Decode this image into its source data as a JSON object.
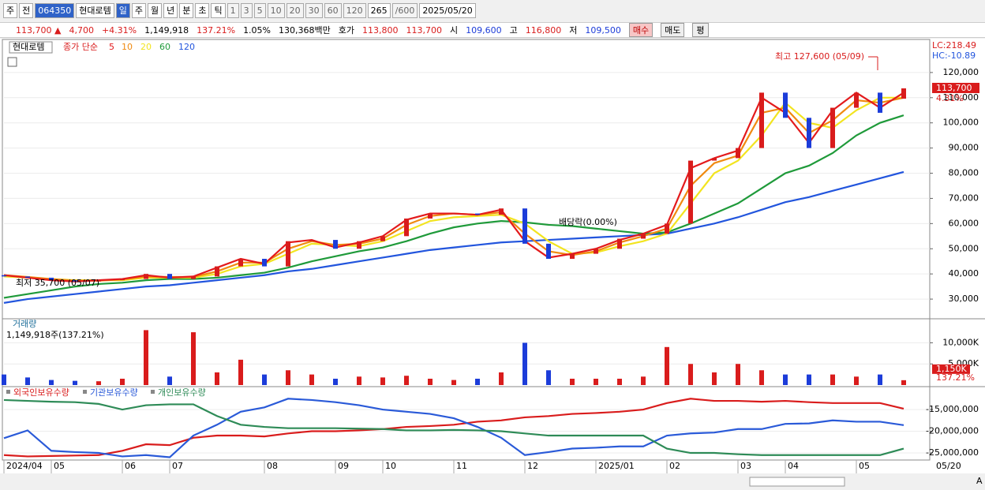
{
  "toolbar": {
    "tabs": [
      "주",
      "전"
    ],
    "code": "064350",
    "name": "현대로템",
    "periods": [
      "일",
      "주",
      "월",
      "년",
      "분",
      "초",
      "틱"
    ],
    "intervals": [
      "1",
      "3",
      "5",
      "10",
      "20",
      "30",
      "60",
      "120"
    ],
    "count": "265",
    "total": "/600",
    "date": "2025/05/20"
  },
  "info": [
    {
      "text": "113,700 ▲",
      "color": "#d91c1c"
    },
    {
      "text": "4,700",
      "color": "#d91c1c"
    },
    {
      "text": "+4.31%",
      "color": "#d91c1c"
    },
    {
      "text": "1,149,918",
      "color": "#000"
    },
    {
      "text": "137.21%",
      "color": "#d91c1c"
    },
    {
      "text": "1.05%",
      "color": "#000"
    },
    {
      "text": "130,368백만",
      "color": "#000"
    },
    {
      "text": "호가",
      "color": "#000"
    },
    {
      "text": "113,800",
      "color": "#d91c1c"
    },
    {
      "text": "113,700",
      "color": "#d91c1c"
    },
    {
      "text": "시",
      "color": "#000"
    },
    {
      "text": "109,600",
      "color": "#1c3cd9"
    },
    {
      "text": "고",
      "color": "#000"
    },
    {
      "text": "116,800",
      "color": "#d91c1c"
    },
    {
      "text": "저",
      "color": "#000"
    },
    {
      "text": "109,500",
      "color": "#1c3cd9"
    }
  ],
  "buttons": [
    "매수",
    "매도",
    "평"
  ],
  "chart_data": [
    {
      "type": "candlestick",
      "title": "현대로템",
      "legend_label": "종가 단순",
      "categories": [
        "2024/04",
        null,
        "05",
        null,
        null,
        "06",
        null,
        "07",
        null,
        null,
        null,
        "08",
        null,
        null,
        "09",
        null,
        "10",
        null,
        null,
        "11",
        null,
        null,
        "12",
        null,
        null,
        "2025/01",
        null,
        null,
        "02",
        null,
        null,
        "03",
        null,
        "04",
        null,
        null,
        "05",
        null,
        null
      ],
      "last_date": "05/20",
      "open": [
        39500,
        39000,
        38500,
        37500,
        37000,
        37500,
        38000,
        40000,
        38000,
        39000,
        43000,
        46000,
        43000,
        53000,
        53500,
        50000,
        53000,
        55000,
        62000,
        64000,
        64000,
        63500,
        66000,
        52000,
        46000,
        48000,
        50000,
        54000,
        56000,
        60000,
        85000,
        86000,
        90000,
        112000,
        102000,
        90000,
        106000,
        112000,
        109600
      ],
      "close": [
        39000,
        38500,
        37500,
        37000,
        37500,
        38000,
        40000,
        38000,
        39000,
        43000,
        46000,
        43000,
        53000,
        53500,
        50000,
        53000,
        55000,
        62000,
        64000,
        64000,
        63500,
        66000,
        52000,
        46000,
        48000,
        50000,
        54000,
        56000,
        60000,
        85000,
        86000,
        90000,
        112000,
        102000,
        90000,
        106000,
        112000,
        104000,
        113700
      ],
      "up_color": "#d91c1c",
      "down_color": "#1c3cd9",
      "series": [
        {
          "name": "5",
          "color": "#e31a1c",
          "values": [
            39500,
            38500,
            37500,
            37000,
            37500,
            38000,
            39500,
            38500,
            39000,
            42500,
            46000,
            44000,
            52500,
            53500,
            50500,
            52500,
            55000,
            61500,
            64000,
            64000,
            63500,
            65500,
            53000,
            46500,
            48000,
            50000,
            53500,
            56000,
            59500,
            82000,
            86000,
            89000,
            110000,
            104000,
            92000,
            105000,
            112000,
            106000,
            112000
          ]
        },
        {
          "name": "10",
          "color": "#f08a10",
          "values": [
            39500,
            38800,
            38000,
            37300,
            37300,
            37800,
            39000,
            38800,
            38800,
            41000,
            44500,
            44500,
            50000,
            53000,
            51500,
            52000,
            54000,
            59500,
            63000,
            64000,
            63500,
            64500,
            56000,
            49000,
            47500,
            49000,
            52500,
            55000,
            58000,
            75000,
            84000,
            87000,
            104000,
            106000,
            96000,
            101000,
            109000,
            108000,
            110000
          ]
        },
        {
          "name": "20",
          "color": "#f2e420",
          "values": [
            39000,
            38500,
            38000,
            37500,
            37500,
            37500,
            38500,
            38500,
            38500,
            40000,
            43000,
            44000,
            48000,
            52000,
            51500,
            51000,
            53000,
            57000,
            61000,
            62500,
            63000,
            63500,
            60000,
            53000,
            48000,
            48500,
            51000,
            53000,
            56000,
            68000,
            80000,
            85000,
            95000,
            108000,
            100000,
            98000,
            105000,
            110000,
            110000
          ]
        },
        {
          "name": "60",
          "color": "#1f9a3a",
          "values": [
            30500,
            32000,
            33500,
            35000,
            36000,
            36500,
            37500,
            38000,
            38000,
            38500,
            39500,
            40500,
            42500,
            45000,
            47000,
            49000,
            50500,
            53000,
            56000,
            58500,
            60000,
            61000,
            60500,
            59500,
            59000,
            58000,
            57000,
            56000,
            56500,
            60000,
            64000,
            68000,
            74000,
            80000,
            83000,
            88000,
            95000,
            100000,
            103000
          ]
        },
        {
          "name": "120",
          "color": "#2255dd",
          "values": [
            28500,
            30000,
            31000,
            32000,
            33000,
            34000,
            35000,
            35500,
            36500,
            37500,
            38500,
            39500,
            41000,
            42000,
            43500,
            45000,
            46500,
            48000,
            49500,
            50500,
            51500,
            52500,
            53000,
            53500,
            54000,
            54500,
            55000,
            55500,
            56000,
            58000,
            60000,
            62500,
            65500,
            68500,
            70500,
            73000,
            75500,
            78000,
            80500
          ]
        }
      ],
      "ylim": [
        22500,
        132500
      ],
      "yticks": [
        {
          "value": 30000,
          "label": "30,000"
        },
        {
          "value": 40000,
          "label": "40,000"
        },
        {
          "value": 50000,
          "label": "50,000"
        },
        {
          "value": 60000,
          "label": "60,000"
        },
        {
          "value": 70000,
          "label": "70,000"
        },
        {
          "value": 80000,
          "label": "80,000"
        },
        {
          "value": 90000,
          "label": "90,000"
        },
        {
          "value": 100000,
          "label": "100,000"
        },
        {
          "value": 110000,
          "label": "110,000"
        },
        {
          "value": 120000,
          "label": "120,000"
        }
      ],
      "grid": true,
      "annotations": [
        {
          "text": "최고 127,600 (05/09)",
          "color": "#d91c1c"
        },
        {
          "text": "최저 35,700 (05/07)",
          "color": "#000"
        },
        {
          "text": "배당락(0.00%)",
          "color": "#000"
        }
      ],
      "lc_label": "LC:218.49",
      "hc_label": "HC:-10.89",
      "close_label": "113,700",
      "change_label": "4.31%"
    },
    {
      "type": "bar",
      "title": "거래량",
      "subtitle": "1,149,918주(137.21%)",
      "values": [
        2500,
        1800,
        1200,
        1000,
        900,
        1500,
        13000,
        2000,
        12500,
        3000,
        6000,
        2500,
        3500,
        2500,
        1500,
        2000,
        1800,
        2200,
        1500,
        1200,
        1500,
        3000,
        10000,
        3500,
        1500,
        1500,
        1500,
        2000,
        9000,
        5000,
        3000,
        5000,
        3500,
        2500,
        2500,
        2500,
        2000,
        2500,
        1150
      ],
      "ylim": [
        0,
        15500
      ],
      "yticks": [
        {
          "value": 5000,
          "label": "5,000K"
        },
        {
          "value": 10000,
          "label": "10,000K"
        }
      ],
      "last_label": "1,150K",
      "pct_label": "137.21%"
    },
    {
      "type": "line",
      "series": [
        {
          "name": "외국인보유수량",
          "color": "#d91c1c",
          "values": [
            -25500000,
            -25800000,
            -25700000,
            -25600000,
            -25500000,
            -24500000,
            -23000000,
            -23200000,
            -21500000,
            -21000000,
            -21000000,
            -21200000,
            -20500000,
            -20000000,
            -20000000,
            -19800000,
            -19500000,
            -19000000,
            -18800000,
            -18500000,
            -17800000,
            -17500000,
            -16800000,
            -16500000,
            -16000000,
            -15800000,
            -15500000,
            -15000000,
            -13500000,
            -12500000,
            -13000000,
            -13000000,
            -13200000,
            -13000000,
            -13300000,
            -13500000,
            -13500000,
            -13500000,
            -14800000
          ]
        },
        {
          "name": "기관보유수량",
          "color": "#2a5ad8",
          "values": [
            -21600000,
            -19800000,
            -24500000,
            -24800000,
            -25000000,
            -25800000,
            -25500000,
            -26000000,
            -21000000,
            -18500000,
            -15500000,
            -14500000,
            -12500000,
            -12800000,
            -13300000,
            -14000000,
            -15000000,
            -15500000,
            -16000000,
            -17000000,
            -19000000,
            -21500000,
            -25500000,
            -24800000,
            -24000000,
            -23800000,
            -23500000,
            -23500000,
            -21000000,
            -20500000,
            -20300000,
            -19500000,
            -19500000,
            -18300000,
            -18200000,
            -17500000,
            -17800000,
            -17800000,
            -18600000
          ]
        },
        {
          "name": "개인보유수량",
          "color": "#2e8b57",
          "values": [
            -12800000,
            -13000000,
            -13200000,
            -13300000,
            -13700000,
            -15000000,
            -14000000,
            -13800000,
            -13800000,
            -16500000,
            -18500000,
            -19000000,
            -19300000,
            -19300000,
            -19300000,
            -19400000,
            -19500000,
            -19800000,
            -19800000,
            -19700000,
            -19800000,
            -20000000,
            -20500000,
            -21000000,
            -21000000,
            -21000000,
            -21000000,
            -21000000,
            -24000000,
            -25000000,
            -25000000,
            -25300000,
            -25500000,
            -25500000,
            -25500000,
            -25500000,
            -25500000,
            -25500000,
            -24000000
          ]
        }
      ],
      "ylim": [
        -26450000,
        -9900000
      ],
      "yticks": [
        {
          "value": -25000000,
          "label": "-25,000,000"
        },
        {
          "value": -20000000,
          "label": "-20,000,000"
        },
        {
          "value": -15000000,
          "label": "-15,000,000"
        }
      ]
    }
  ],
  "footer": {
    "font_label": "A"
  }
}
